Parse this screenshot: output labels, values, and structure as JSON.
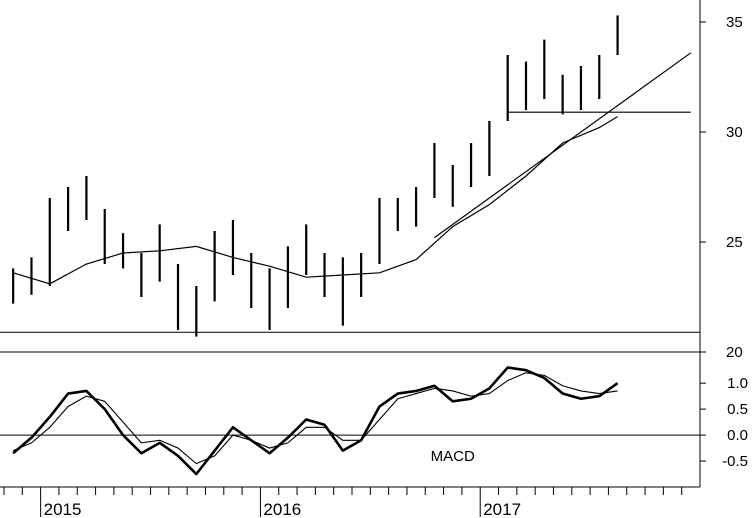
{
  "chart_data": [
    {
      "type": "ohlc-bar",
      "panel": "price",
      "title": "",
      "ylim": [
        20,
        36
      ],
      "y_ticks": [
        20,
        25,
        30,
        35
      ],
      "x_year_labels": [
        "2015",
        "2016",
        "2017"
      ],
      "x_range": [
        "2014-11",
        "2017-12"
      ],
      "series": [
        {
          "name": "",
          "style": "vertical bars",
          "points": [
            {
              "x": "2014-11",
              "y": [
                22.2,
                23.8
              ]
            },
            {
              "x": "2014-12",
              "y": [
                22.6,
                24.3
              ]
            },
            {
              "x": "2015-01",
              "y": [
                23.0,
                27.0
              ]
            },
            {
              "x": "2015-02",
              "y": [
                25.5,
                27.5
              ]
            },
            {
              "x": "2015-03",
              "y": [
                26.0,
                28.0
              ]
            },
            {
              "x": "2015-04",
              "y": [
                24.0,
                26.5
              ]
            },
            {
              "x": "2015-05",
              "y": [
                23.8,
                25.4
              ]
            },
            {
              "x": "2015-06",
              "y": [
                22.5,
                24.5
              ]
            },
            {
              "x": "2015-07",
              "y": [
                23.2,
                25.8
              ]
            },
            {
              "x": "2015-08",
              "y": [
                21.0,
                24.0
              ]
            },
            {
              "x": "2015-09",
              "y": [
                20.7,
                23.0
              ]
            },
            {
              "x": "2015-10",
              "y": [
                22.3,
                25.5
              ]
            },
            {
              "x": "2015-11",
              "y": [
                23.5,
                26.0
              ]
            },
            {
              "x": "2015-12",
              "y": [
                22.0,
                24.5
              ]
            },
            {
              "x": "2016-01",
              "y": [
                21.0,
                23.8
              ]
            },
            {
              "x": "2016-02",
              "y": [
                22.0,
                24.8
              ]
            },
            {
              "x": "2016-03",
              "y": [
                23.5,
                25.8
              ]
            },
            {
              "x": "2016-04",
              "y": [
                22.5,
                24.5
              ]
            },
            {
              "x": "2016-05",
              "y": [
                21.2,
                24.3
              ]
            },
            {
              "x": "2016-06",
              "y": [
                22.5,
                24.5
              ]
            },
            {
              "x": "2016-07",
              "y": [
                24.0,
                27.0
              ]
            },
            {
              "x": "2016-08",
              "y": [
                25.5,
                27.0
              ]
            },
            {
              "x": "2016-09",
              "y": [
                25.7,
                27.5
              ]
            },
            {
              "x": "2016-10",
              "y": [
                27.0,
                29.5
              ]
            },
            {
              "x": "2016-11",
              "y": [
                26.6,
                28.5
              ]
            },
            {
              "x": "2016-12",
              "y": [
                27.5,
                29.5
              ]
            },
            {
              "x": "2017-01",
              "y": [
                28.0,
                30.5
              ]
            },
            {
              "x": "2017-02",
              "y": [
                30.5,
                33.5
              ]
            },
            {
              "x": "2017-03",
              "y": [
                31.0,
                33.2
              ]
            },
            {
              "x": "2017-04",
              "y": [
                31.5,
                34.2
              ]
            },
            {
              "x": "2017-05",
              "y": [
                30.8,
                32.6
              ]
            },
            {
              "x": "2017-06",
              "y": [
                31.0,
                33.0
              ]
            },
            {
              "x": "2017-07",
              "y": [
                31.5,
                33.5
              ]
            },
            {
              "x": "2017-08",
              "y": [
                33.5,
                35.3
              ]
            }
          ]
        },
        {
          "name": "",
          "style": "moving average line",
          "points": [
            {
              "x": "2014-11",
              "y": 23.6
            },
            {
              "x": "2015-01",
              "y": 23.1
            },
            {
              "x": "2015-03",
              "y": 24.0
            },
            {
              "x": "2015-05",
              "y": 24.5
            },
            {
              "x": "2015-07",
              "y": 24.6
            },
            {
              "x": "2015-09",
              "y": 24.8
            },
            {
              "x": "2015-11",
              "y": 24.3
            },
            {
              "x": "2016-01",
              "y": 23.9
            },
            {
              "x": "2016-03",
              "y": 23.4
            },
            {
              "x": "2016-05",
              "y": 23.5
            },
            {
              "x": "2016-07",
              "y": 23.6
            },
            {
              "x": "2016-09",
              "y": 24.2
            },
            {
              "x": "2016-11",
              "y": 25.7
            },
            {
              "x": "2017-01",
              "y": 26.7
            },
            {
              "x": "2017-03",
              "y": 28.0
            },
            {
              "x": "2017-05",
              "y": 29.5
            },
            {
              "x": "2017-07",
              "y": 30.2
            },
            {
              "x": "2017-08",
              "y": 30.7
            }
          ]
        }
      ],
      "trendlines": [
        {
          "name": "",
          "points": [
            {
              "x": "2016-10",
              "y": 25.2
            },
            {
              "x": "2017-12",
              "y": 33.6
            }
          ]
        },
        {
          "name": "",
          "points": [
            {
              "x": "2017-02",
              "y": 30.9
            },
            {
              "x": "2017-12",
              "y": 30.9
            }
          ]
        }
      ],
      "horizontal_line": 20.9,
      "grid": false
    },
    {
      "type": "line",
      "panel": "indicator",
      "title": "",
      "annotation": "MACD",
      "ylim": [
        -1.0,
        1.6
      ],
      "y_ticks": [
        -0.5,
        0.0,
        0.5,
        1.0
      ],
      "y_tick_labels": [
        "-0.5",
        "0.0",
        "0.5",
        "1.0"
      ],
      "zero_line": 0.0,
      "series": [
        {
          "name": "",
          "style": "bold",
          "points": [
            {
              "x": "2014-11",
              "y": -0.35
            },
            {
              "x": "2014-12",
              "y": -0.05
            },
            {
              "x": "2015-01",
              "y": 0.35
            },
            {
              "x": "2015-02",
              "y": 0.8
            },
            {
              "x": "2015-03",
              "y": 0.85
            },
            {
              "x": "2015-04",
              "y": 0.5
            },
            {
              "x": "2015-05",
              "y": 0.0
            },
            {
              "x": "2015-06",
              "y": -0.35
            },
            {
              "x": "2015-07",
              "y": -0.15
            },
            {
              "x": "2015-08",
              "y": -0.4
            },
            {
              "x": "2015-09",
              "y": -0.75
            },
            {
              "x": "2015-10",
              "y": -0.3
            },
            {
              "x": "2015-11",
              "y": 0.15
            },
            {
              "x": "2015-12",
              "y": -0.1
            },
            {
              "x": "2016-01",
              "y": -0.35
            },
            {
              "x": "2016-02",
              "y": -0.05
            },
            {
              "x": "2016-03",
              "y": 0.3
            },
            {
              "x": "2016-04",
              "y": 0.2
            },
            {
              "x": "2016-05",
              "y": -0.3
            },
            {
              "x": "2016-06",
              "y": -0.1
            },
            {
              "x": "2016-07",
              "y": 0.55
            },
            {
              "x": "2016-08",
              "y": 0.8
            },
            {
              "x": "2016-09",
              "y": 0.85
            },
            {
              "x": "2016-10",
              "y": 0.95
            },
            {
              "x": "2016-11",
              "y": 0.65
            },
            {
              "x": "2016-12",
              "y": 0.7
            },
            {
              "x": "2017-01",
              "y": 0.9
            },
            {
              "x": "2017-02",
              "y": 1.3
            },
            {
              "x": "2017-03",
              "y": 1.25
            },
            {
              "x": "2017-04",
              "y": 1.1
            },
            {
              "x": "2017-05",
              "y": 0.8
            },
            {
              "x": "2017-06",
              "y": 0.7
            },
            {
              "x": "2017-07",
              "y": 0.75
            },
            {
              "x": "2017-08",
              "y": 1.0
            }
          ]
        },
        {
          "name": "",
          "style": "thin",
          "points": [
            {
              "x": "2014-11",
              "y": -0.3
            },
            {
              "x": "2014-12",
              "y": -0.15
            },
            {
              "x": "2015-01",
              "y": 0.15
            },
            {
              "x": "2015-02",
              "y": 0.55
            },
            {
              "x": "2015-03",
              "y": 0.75
            },
            {
              "x": "2015-04",
              "y": 0.65
            },
            {
              "x": "2015-05",
              "y": 0.25
            },
            {
              "x": "2015-06",
              "y": -0.15
            },
            {
              "x": "2015-07",
              "y": -0.1
            },
            {
              "x": "2015-08",
              "y": -0.25
            },
            {
              "x": "2015-09",
              "y": -0.55
            },
            {
              "x": "2015-10",
              "y": -0.4
            },
            {
              "x": "2015-11",
              "y": 0.0
            },
            {
              "x": "2015-12",
              "y": -0.1
            },
            {
              "x": "2016-01",
              "y": -0.25
            },
            {
              "x": "2016-02",
              "y": -0.15
            },
            {
              "x": "2016-03",
              "y": 0.15
            },
            {
              "x": "2016-04",
              "y": 0.15
            },
            {
              "x": "2016-05",
              "y": -0.1
            },
            {
              "x": "2016-06",
              "y": -0.1
            },
            {
              "x": "2016-07",
              "y": 0.3
            },
            {
              "x": "2016-08",
              "y": 0.7
            },
            {
              "x": "2016-09",
              "y": 0.8
            },
            {
              "x": "2016-10",
              "y": 0.9
            },
            {
              "x": "2016-11",
              "y": 0.85
            },
            {
              "x": "2016-12",
              "y": 0.75
            },
            {
              "x": "2017-01",
              "y": 0.8
            },
            {
              "x": "2017-02",
              "y": 1.05
            },
            {
              "x": "2017-03",
              "y": 1.2
            },
            {
              "x": "2017-04",
              "y": 1.15
            },
            {
              "x": "2017-05",
              "y": 0.95
            },
            {
              "x": "2017-06",
              "y": 0.85
            },
            {
              "x": "2017-07",
              "y": 0.8
            },
            {
              "x": "2017-08",
              "y": 0.85
            }
          ]
        }
      ],
      "grid": false
    }
  ]
}
